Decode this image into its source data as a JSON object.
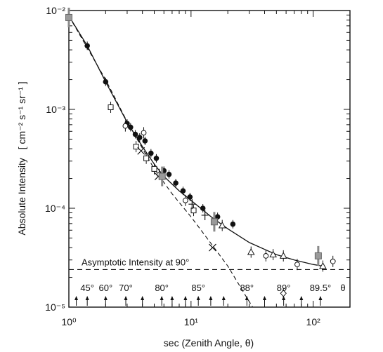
{
  "chart_data": {
    "type": "scatter",
    "xscale": "log",
    "yscale": "log",
    "xlim": [
      1,
      200
    ],
    "ylim": [
      1e-05,
      0.01
    ],
    "xlabel": "sec (Zenith Angle, θ)",
    "ylabel_main": "Absolute  Intensity",
    "ylabel_units": "[ cm⁻² s⁻¹ sr⁻¹ ]",
    "grid": false,
    "x_ticks": [
      {
        "value": 1,
        "label": "10⁰"
      },
      {
        "value": 10,
        "label": "10¹"
      },
      {
        "value": 100,
        "label": "10²"
      }
    ],
    "y_ticks": [
      {
        "value": 0.01,
        "label": "10⁻²"
      },
      {
        "value": 0.001,
        "label": "10⁻³"
      },
      {
        "value": 0.0001,
        "label": "10⁻⁴"
      },
      {
        "value": 1e-05,
        "label": "10⁻⁵"
      }
    ],
    "asymptote": {
      "label": "Asymptotic Intensity at 90°",
      "y": 2.4e-05
    },
    "angle_annotations": [
      {
        "label": "45°",
        "x": 1.414
      },
      {
        "label": "60°",
        "x": 2.0
      },
      {
        "label": "70°",
        "x": 2.924
      },
      {
        "label": "80°",
        "x": 5.759
      },
      {
        "label": "85°",
        "x": 11.47
      },
      {
        "label": "88°",
        "x": 28.65
      },
      {
        "label": "89°",
        "x": 57.3
      },
      {
        "label": "89.5°",
        "x": 114.6
      },
      {
        "label": "θ",
        "x": 210
      }
    ],
    "arrow_positions": [
      1.15,
      1.414,
      2.0,
      2.924,
      4.0,
      5.759,
      7.0,
      9.0,
      11.47,
      14.5,
      18.5,
      28.65,
      40,
      57.3,
      80,
      114.6
    ],
    "series": [
      {
        "marker": "filled-circle",
        "points": [
          {
            "x": 1.414,
            "y": 0.0044
          },
          {
            "x": 2.0,
            "y": 0.0019
          },
          {
            "x": 3.0,
            "y": 0.00072
          },
          {
            "x": 3.2,
            "y": 0.00066
          },
          {
            "x": 3.5,
            "y": 0.00056
          },
          {
            "x": 3.8,
            "y": 0.00052
          },
          {
            "x": 4.2,
            "y": 0.00048
          },
          {
            "x": 4.7,
            "y": 0.00036
          },
          {
            "x": 5.2,
            "y": 0.00032
          },
          {
            "x": 6.0,
            "y": 0.00024
          },
          {
            "x": 6.6,
            "y": 0.00022
          },
          {
            "x": 7.5,
            "y": 0.00018
          },
          {
            "x": 8.6,
            "y": 0.00015
          },
          {
            "x": 9.8,
            "y": 0.00013
          },
          {
            "x": 12.5,
            "y": 0.0001
          },
          {
            "x": 16.5,
            "y": 8.2e-05
          },
          {
            "x": 22.0,
            "y": 6.9e-05
          }
        ]
      },
      {
        "marker": "open-square",
        "points": [
          {
            "x": 1.0,
            "y": 0.0085
          },
          {
            "x": 2.2,
            "y": 0.00105
          },
          {
            "x": 3.55,
            "y": 0.00042
          },
          {
            "x": 4.3,
            "y": 0.00032
          },
          {
            "x": 5.0,
            "y": 0.00025
          },
          {
            "x": 5.8,
            "y": 0.00021
          },
          {
            "x": 10.5,
            "y": 9.5e-05
          }
        ]
      },
      {
        "marker": "open-circle",
        "points": [
          {
            "x": 2.9,
            "y": 0.00068
          },
          {
            "x": 4.1,
            "y": 0.00058
          },
          {
            "x": 5.5,
            "y": 0.00022
          },
          {
            "x": 9.0,
            "y": 0.00012
          },
          {
            "x": 41.0,
            "y": 3.3e-05
          },
          {
            "x": 74.0,
            "y": 2.7e-05
          },
          {
            "x": 145.0,
            "y": 2.9e-05
          }
        ]
      },
      {
        "marker": "cross",
        "points": [
          {
            "x": 3.9,
            "y": 0.00038
          },
          {
            "x": 5.4,
            "y": 0.00021
          },
          {
            "x": 15.0,
            "y": 4e-05
          }
        ]
      },
      {
        "marker": "plus",
        "points": [
          {
            "x": 10.2,
            "y": 0.00011
          },
          {
            "x": 13.0,
            "y": 8.5e-05
          }
        ]
      },
      {
        "marker": "open-triangle",
        "points": [
          {
            "x": 18.0,
            "y": 6.7e-05
          },
          {
            "x": 31.0,
            "y": 3.6e-05
          },
          {
            "x": 47.0,
            "y": 3.4e-05
          },
          {
            "x": 57.0,
            "y": 3.3e-05
          },
          {
            "x": 120.0,
            "y": 2.6e-05
          }
        ]
      },
      {
        "marker": "gray-square",
        "points": [
          {
            "x": 1.0,
            "y": 0.0085
          },
          {
            "x": 5.8,
            "y": 0.00021
          },
          {
            "x": 15.5,
            "y": 7.3e-05
          },
          {
            "x": 110.0,
            "y": 3.3e-05
          }
        ]
      },
      {
        "marker": "diamond",
        "points": [
          {
            "x": 57.0,
            "y": 1.38e-05
          }
        ]
      }
    ],
    "fit_curve": [
      [
        1.0,
        0.0088
      ],
      [
        1.414,
        0.0044
      ],
      [
        2.0,
        0.0019
      ],
      [
        3.0,
        0.00074
      ],
      [
        4.0,
        0.00042
      ],
      [
        5.0,
        0.00028
      ],
      [
        6.0,
        0.00021
      ],
      [
        8.0,
        0.00015
      ],
      [
        10.0,
        0.00012
      ],
      [
        15.0,
        8e-05
      ],
      [
        20.0,
        6.2e-05
      ],
      [
        30.0,
        4.5e-05
      ],
      [
        50.0,
        3.4e-05
      ],
      [
        70.0,
        3e-05
      ],
      [
        100.0,
        2.7e-05
      ],
      [
        120.0,
        2.6e-05
      ]
    ],
    "dashed_curve": [
      [
        1.0,
        0.0088
      ],
      [
        2.0,
        0.002
      ],
      [
        3.0,
        0.00075
      ],
      [
        5.0,
        0.00025
      ],
      [
        7.0,
        0.00014
      ],
      [
        10.0,
        8.2e-05
      ],
      [
        15.0,
        4.2e-05
      ],
      [
        20.0,
        2.6e-05
      ],
      [
        28.0,
        1.3e-05
      ],
      [
        32.0,
        1e-05
      ]
    ]
  }
}
